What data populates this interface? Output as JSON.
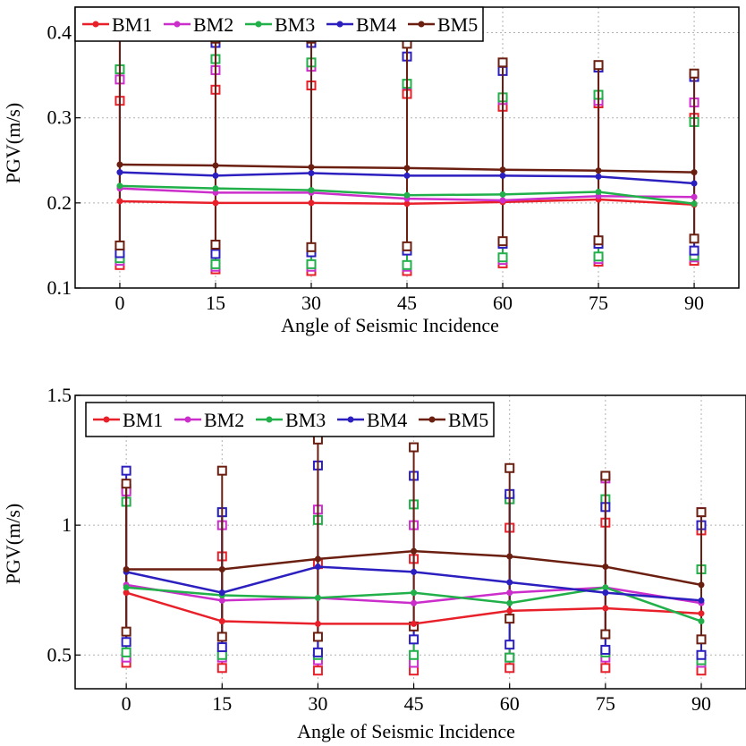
{
  "chart_data": [
    {
      "type": "line",
      "xlabel": "Angle of Seismic Incidence",
      "ylabel": "PGV(m/s)",
      "x": [
        0,
        15,
        30,
        45,
        60,
        75,
        90
      ],
      "xticks": [
        "0",
        "15",
        "30",
        "45",
        "60",
        "75",
        "90"
      ],
      "yticks": [
        "0.1",
        "0.2",
        "0.3",
        "0.4"
      ],
      "xlim": [
        -7,
        97
      ],
      "ylim": [
        0.1,
        0.43
      ],
      "grid": true,
      "legend_position": "top-left",
      "series": [
        {
          "name": "BM1",
          "color": "#e8202a",
          "mean": [
            0.202,
            0.2,
            0.2,
            0.199,
            0.201,
            0.204,
            0.198
          ],
          "max": [
            0.32,
            0.333,
            0.338,
            0.328,
            0.313,
            0.317,
            0.3
          ],
          "min": [
            0.127,
            0.122,
            0.12,
            0.12,
            0.129,
            0.131,
            0.132
          ]
        },
        {
          "name": "BM2",
          "color": "#cc2ecc",
          "mean": [
            0.217,
            0.212,
            0.212,
            0.205,
            0.203,
            0.208,
            0.207
          ],
          "max": [
            0.345,
            0.356,
            0.36,
            0.339,
            0.321,
            0.32,
            0.318
          ],
          "min": [
            0.132,
            0.125,
            0.125,
            0.125,
            0.133,
            0.134,
            0.136
          ]
        },
        {
          "name": "BM3",
          "color": "#22b04a",
          "mean": [
            0.22,
            0.217,
            0.215,
            0.209,
            0.21,
            0.213,
            0.199
          ],
          "max": [
            0.357,
            0.369,
            0.365,
            0.34,
            0.324,
            0.327,
            0.295
          ],
          "min": [
            0.135,
            0.128,
            0.128,
            0.127,
            0.136,
            0.137,
            0.138
          ]
        },
        {
          "name": "BM4",
          "color": "#2c1fbf",
          "mean": [
            0.236,
            0.232,
            0.235,
            0.232,
            0.232,
            0.231,
            0.223
          ],
          "max": [
            0.396,
            0.388,
            0.388,
            0.372,
            0.355,
            0.359,
            0.348
          ],
          "min": [
            0.141,
            0.14,
            0.142,
            0.144,
            0.152,
            0.152,
            0.144
          ]
        },
        {
          "name": "BM5",
          "color": "#6b1f10",
          "mean": [
            0.245,
            0.244,
            0.242,
            0.241,
            0.239,
            0.238,
            0.236
          ],
          "max": [
            0.4,
            0.393,
            0.393,
            0.387,
            0.365,
            0.362,
            0.352
          ],
          "min": [
            0.15,
            0.151,
            0.148,
            0.149,
            0.155,
            0.156,
            0.158
          ]
        }
      ]
    },
    {
      "type": "line",
      "xlabel": "Angle of Seismic Incidence",
      "ylabel": "PGV(m/s)",
      "x": [
        0,
        15,
        30,
        45,
        60,
        75,
        90
      ],
      "xticks": [
        "0",
        "15",
        "30",
        "45",
        "60",
        "75",
        "90"
      ],
      "yticks": [
        "0.5",
        "1",
        "1.5"
      ],
      "xlim": [
        -8,
        97
      ],
      "ylim": [
        0.37,
        1.5
      ],
      "grid": true,
      "legend_position": "top",
      "series": [
        {
          "name": "BM1",
          "color": "#e8202a",
          "mean": [
            0.74,
            0.63,
            0.62,
            0.62,
            0.67,
            0.68,
            0.66
          ],
          "max": [
            1.14,
            0.88,
            0.85,
            0.87,
            0.99,
            1.01,
            0.98
          ],
          "min": [
            0.47,
            0.45,
            0.44,
            0.44,
            0.45,
            0.45,
            0.44
          ]
        },
        {
          "name": "BM2",
          "color": "#cc2ecc",
          "mean": [
            0.77,
            0.71,
            0.72,
            0.7,
            0.74,
            0.76,
            0.7
          ],
          "max": [
            1.13,
            1.0,
            1.06,
            1.0,
            1.1,
            1.18,
            1.05
          ],
          "min": [
            0.49,
            0.49,
            0.48,
            0.47,
            0.49,
            0.49,
            0.47
          ]
        },
        {
          "name": "BM3",
          "color": "#22b04a",
          "mean": [
            0.76,
            0.73,
            0.72,
            0.74,
            0.7,
            0.76,
            0.63
          ],
          "max": [
            1.09,
            1.05,
            1.02,
            1.08,
            1.1,
            1.1,
            0.83
          ],
          "min": [
            0.51,
            0.5,
            0.5,
            0.5,
            0.49,
            0.51,
            0.48
          ]
        },
        {
          "name": "BM4",
          "color": "#2c1fbf",
          "mean": [
            0.82,
            0.74,
            0.84,
            0.82,
            0.78,
            0.74,
            0.71
          ],
          "max": [
            1.21,
            1.05,
            1.23,
            1.19,
            1.12,
            1.07,
            1.0
          ],
          "min": [
            0.55,
            0.53,
            0.51,
            0.56,
            0.54,
            0.52,
            0.5
          ]
        },
        {
          "name": "BM5",
          "color": "#6b1f10",
          "mean": [
            0.83,
            0.83,
            0.87,
            0.9,
            0.88,
            0.84,
            0.77
          ],
          "max": [
            1.16,
            1.21,
            1.33,
            1.3,
            1.22,
            1.19,
            1.05
          ],
          "min": [
            0.59,
            0.57,
            0.57,
            0.61,
            0.64,
            0.58,
            0.56
          ]
        }
      ]
    }
  ]
}
